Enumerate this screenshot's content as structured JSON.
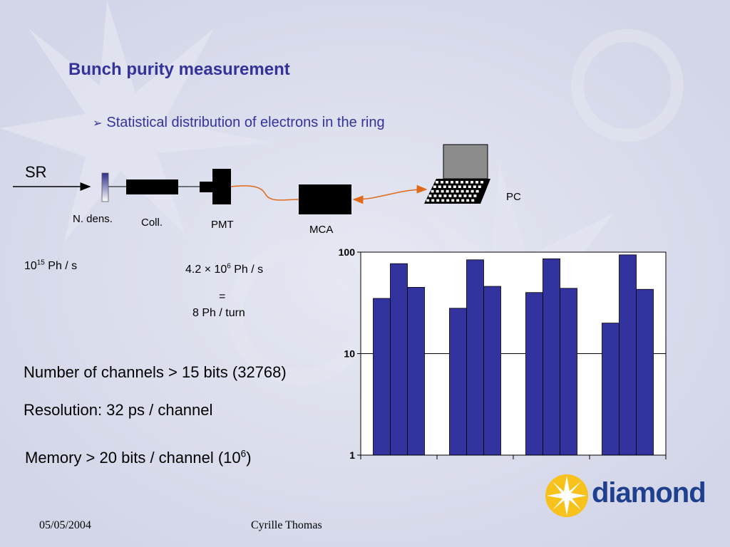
{
  "slide": {
    "title": "Bunch purity measurement",
    "bullet": "Statistical distribution of electrons in the ring"
  },
  "diagram": {
    "sr_label": "SR",
    "ndens_label": "N. dens.",
    "coll_label": "Coll.",
    "pmt_label": "PMT",
    "mca_label": "MCA",
    "pc_label": "PC",
    "flux_base": "10",
    "flux_exp": "15",
    "flux_unit": " Ph / s",
    "rate_prefix": "4.2 × 10",
    "rate_exp": "6",
    "rate_unit": " Ph / s",
    "equals": "=",
    "per_turn": "8 Ph / turn"
  },
  "specs": {
    "channels": "Number of channels > 15 bits (32768)",
    "resolution": "Resolution: 32 ps / channel",
    "memory_prefix": "Memory > 20 bits / channel (10",
    "memory_exp": "6",
    "memory_suffix": ")"
  },
  "footer": {
    "date": "05/05/2004",
    "author": "Cyrille Thomas"
  },
  "logo": {
    "text": "diamond"
  },
  "colors": {
    "title": "#33339a",
    "bar_fill": "#3333a0",
    "fiber": "#e06a1c",
    "logo_yellow": "#f6c21b",
    "logo_blue": "#1f3f8f"
  },
  "chart_data": {
    "type": "bar",
    "yscale": "log",
    "ylim": [
      1,
      100
    ],
    "yticks": [
      "1",
      "10",
      "100"
    ],
    "gridlines": [
      10,
      100
    ],
    "grid": true,
    "legend": "none",
    "groups": [
      {
        "values": [
          35,
          77,
          45
        ]
      },
      {
        "values": [
          28,
          84,
          46
        ]
      },
      {
        "values": [
          40,
          86,
          44
        ]
      },
      {
        "values": [
          20,
          94,
          43
        ]
      }
    ]
  }
}
